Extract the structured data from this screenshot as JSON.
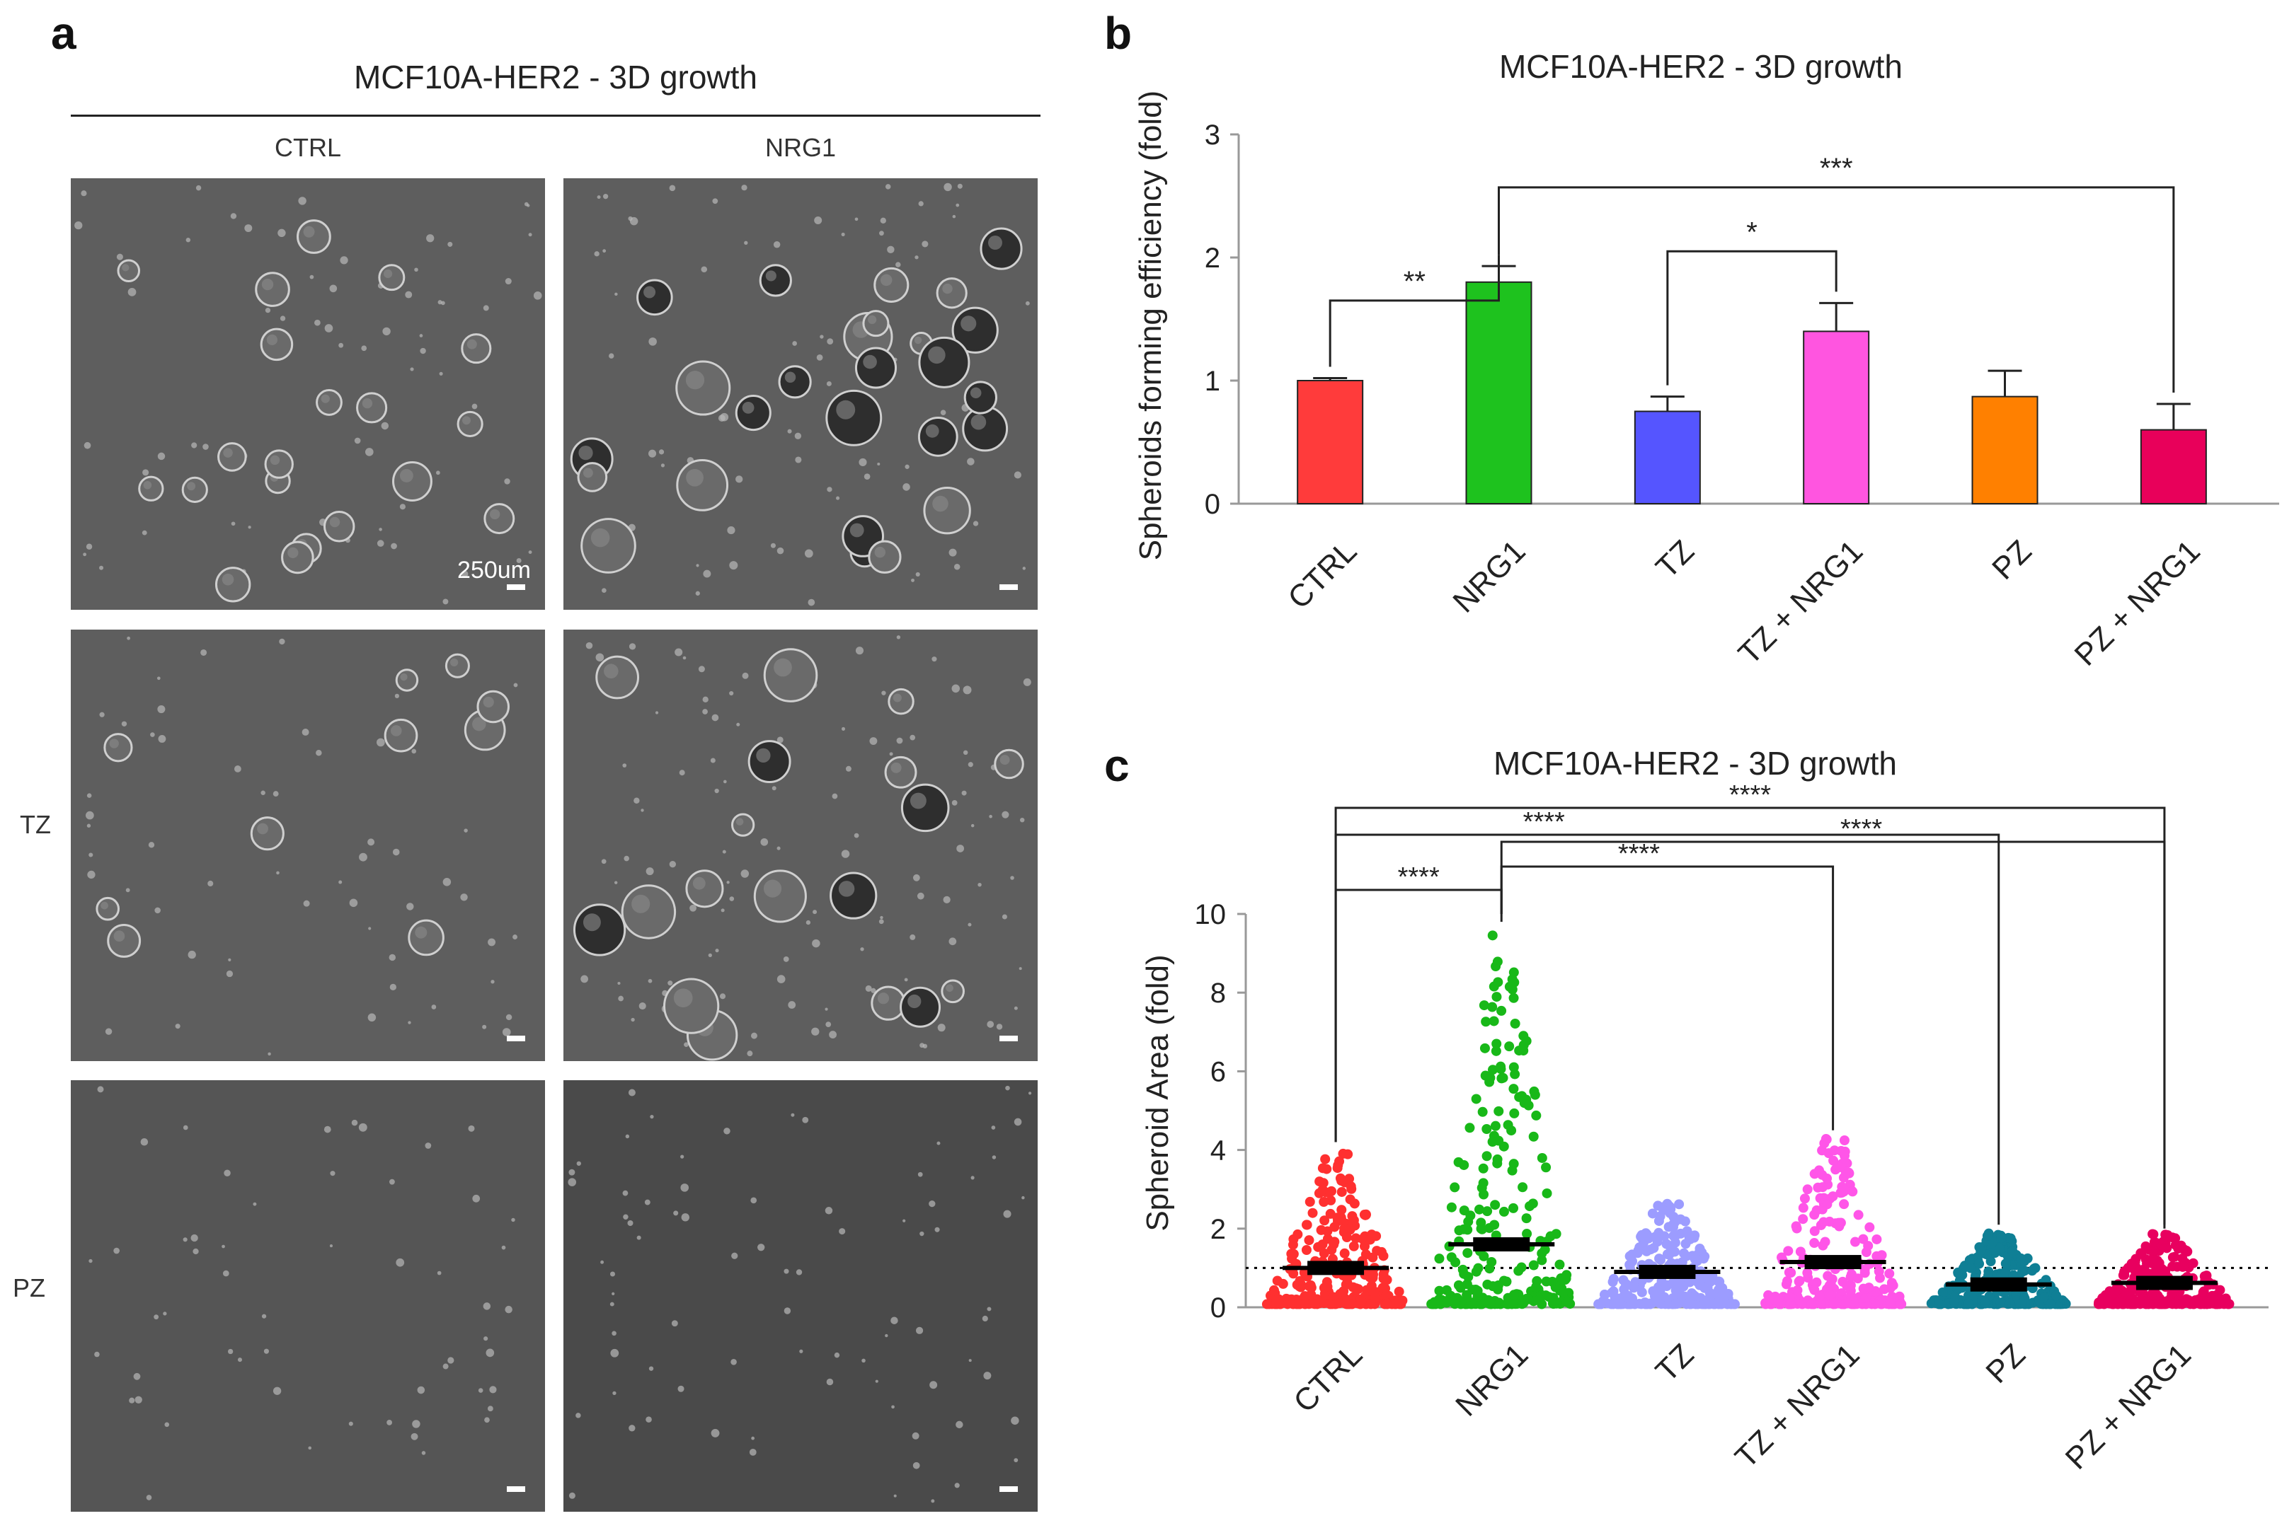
{
  "panels": {
    "a": {
      "letter": "a",
      "title": "MCF10A-HER2 - 3D growth",
      "columns": [
        "CTRL",
        "NRG1"
      ],
      "rows": [
        "",
        "TZ",
        "PZ"
      ],
      "scale_label": "250um"
    },
    "b": {
      "letter": "b"
    },
    "c": {
      "letter": "c"
    }
  },
  "chart_data": [
    {
      "type": "bar",
      "panel": "b",
      "title": "MCF10A-HER2 - 3D growth",
      "ylabel": "Spheroids forming efficiency (fold)",
      "categories": [
        "CTRL",
        "NRG1",
        "TZ",
        "TZ + NRG1",
        "PZ",
        "PZ + NRG1"
      ],
      "values": [
        1.0,
        1.8,
        0.75,
        1.4,
        0.87,
        0.6
      ],
      "errors": [
        0.02,
        0.13,
        0.12,
        0.23,
        0.21,
        0.21
      ],
      "colors": [
        "#ff3b3b",
        "#1ec21e",
        "#5555ff",
        "#ff55e0",
        "#ff8000",
        "#e8005a"
      ],
      "ylim": [
        0,
        3
      ],
      "yticks": [
        0,
        1,
        2,
        3
      ],
      "significance": [
        {
          "from": 0,
          "to": 1,
          "label": "**"
        },
        {
          "from": 2,
          "to": 3,
          "label": "*"
        },
        {
          "from": 1,
          "to": 5,
          "label": "***"
        }
      ]
    },
    {
      "type": "scatter",
      "panel": "c",
      "title": "MCF10A-HER2 - 3D growth",
      "ylabel": "Spheroid Area (fold)",
      "categories": [
        "CTRL",
        "NRG1",
        "TZ",
        "TZ + NRG1",
        "PZ",
        "PZ + NRG1"
      ],
      "colors": [
        "#ff3030",
        "#18b818",
        "#9c9cff",
        "#ff55e8",
        "#0f7f95",
        "#e8005f"
      ],
      "means": [
        1.0,
        1.6,
        0.9,
        1.15,
        0.58,
        0.62
      ],
      "maxima": [
        4.0,
        9.5,
        2.7,
        4.3,
        1.9,
        1.9
      ],
      "ylim": [
        0,
        10
      ],
      "yticks": [
        0,
        2,
        4,
        6,
        8,
        10
      ],
      "reference_line": 1.0,
      "significance": [
        {
          "from": 0,
          "to": 1,
          "label": "****"
        },
        {
          "from": 1,
          "to": 3,
          "label": "****"
        },
        {
          "from": 1,
          "to": 5,
          "label": "****"
        },
        {
          "from": 0,
          "to": 4,
          "label": "****"
        },
        {
          "from": 0,
          "to": 5,
          "label": "****"
        }
      ]
    }
  ]
}
